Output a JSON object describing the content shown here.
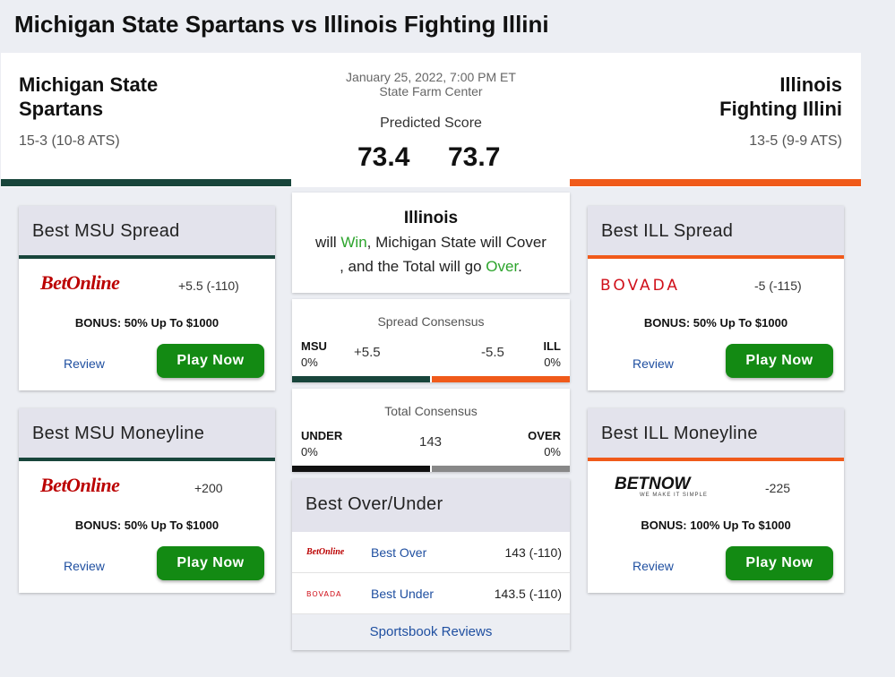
{
  "page_title": "Michigan State Spartans vs Illinois Fighting Illini",
  "game": {
    "date": "January 25, 2022, 7:00 PM ET",
    "venue": "State Farm Center",
    "predicted_label": "Predicted Score"
  },
  "away": {
    "name_line1": "Michigan State",
    "name_line2": "Spartans",
    "record": "15-3 (10-8 ATS)",
    "score": "73.4",
    "color": "#18453b"
  },
  "home": {
    "name_line1": "Illinois",
    "name_line2": "Fighting Illini",
    "record": "13-5 (9-9 ATS)",
    "score": "73.7",
    "color": "#f05a1a"
  },
  "prediction": {
    "team": "Illinois",
    "p1": "will ",
    "win": "Win",
    "p2": ", Michigan State will Cover",
    "p3": ", and the Total will go ",
    "over": "Over",
    "p4": "."
  },
  "spread_consensus": {
    "title": "Spread Consensus",
    "left_abbr": "MSU",
    "left_pct": "0%",
    "left_val": "+5.5",
    "right_abbr": "ILL",
    "right_pct": "0%",
    "right_val": "-5.5"
  },
  "total_consensus": {
    "title": "Total Consensus",
    "left_abbr": "UNDER",
    "left_pct": "0%",
    "right_abbr": "OVER",
    "right_pct": "0%",
    "total": "143"
  },
  "cards": {
    "msu_spread": {
      "title": "Best MSU Spread",
      "book": "BetOnline",
      "odds": "+5.5 (-110)",
      "bonus": "BONUS: 50% Up To $1000",
      "review": "Review",
      "cta": "Play Now"
    },
    "msu_ml": {
      "title": "Best MSU Moneyline",
      "book": "BetOnline",
      "odds": "+200",
      "bonus": "BONUS: 50% Up To $1000",
      "review": "Review",
      "cta": "Play Now"
    },
    "ill_spread": {
      "title": "Best ILL Spread",
      "book": "BOVADA",
      "odds": "-5 (-115)",
      "bonus": "BONUS: 50% Up To $1000",
      "review": "Review",
      "cta": "Play Now"
    },
    "ill_ml": {
      "title": "Best ILL Moneyline",
      "book": "BETNOW",
      "book_tagline": "WE MAKE IT SIMPLE",
      "odds": "-225",
      "bonus": "BONUS: 100% Up To $1000",
      "review": "Review",
      "cta": "Play Now"
    }
  },
  "over_under": {
    "title": "Best Over/Under",
    "rows": [
      {
        "book": "BetOnline",
        "label": "Best Over",
        "odds": "143 (-110)"
      },
      {
        "book": "BOVADA",
        "label": "Best Under",
        "odds": "143.5 (-110)"
      }
    ],
    "footer": "Sportsbook Reviews"
  }
}
